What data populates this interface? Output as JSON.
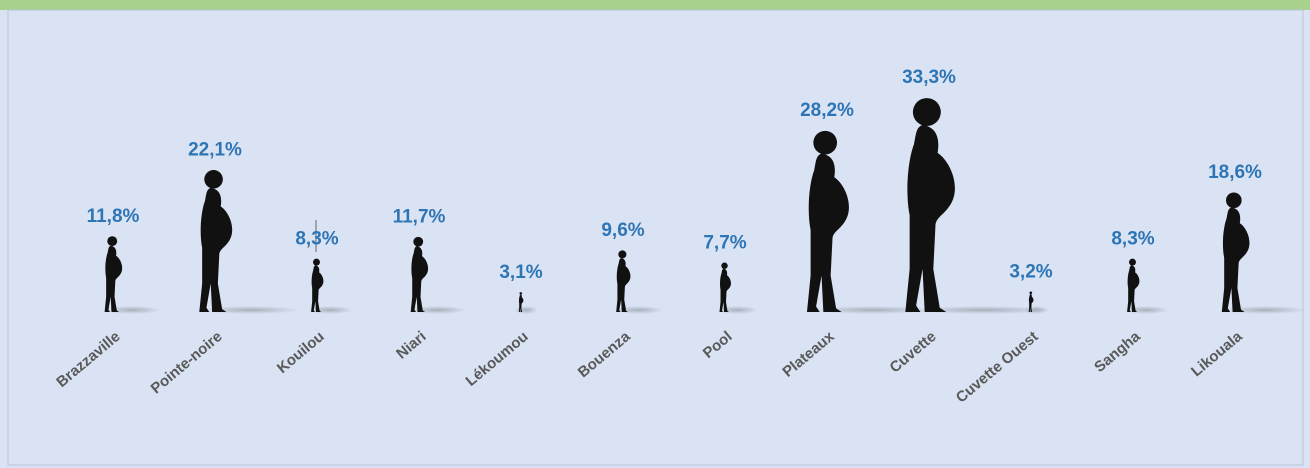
{
  "chart_data": {
    "type": "pictograph",
    "categories": [
      "Brazzaville",
      "Pointe-noire",
      "Kouilou",
      "Niari",
      "Lékoumou",
      "Bouenza",
      "Pool",
      "Plateaux",
      "Cuvette",
      "Cuvette Ouest",
      "Sangha",
      "Likouala"
    ],
    "values": [
      11.8,
      22.1,
      8.3,
      11.7,
      3.1,
      9.6,
      7.7,
      28.2,
      33.3,
      3.2,
      8.3,
      18.6
    ],
    "value_labels": [
      "11,8%",
      "22,1%",
      "8,3%",
      "11,7%",
      "3,1%",
      "9,6%",
      "7,7%",
      "28,2%",
      "33,3%",
      "3,2%",
      "8,3%",
      "18,6%"
    ],
    "color": "#111111",
    "label_color": "#2e75b6"
  }
}
